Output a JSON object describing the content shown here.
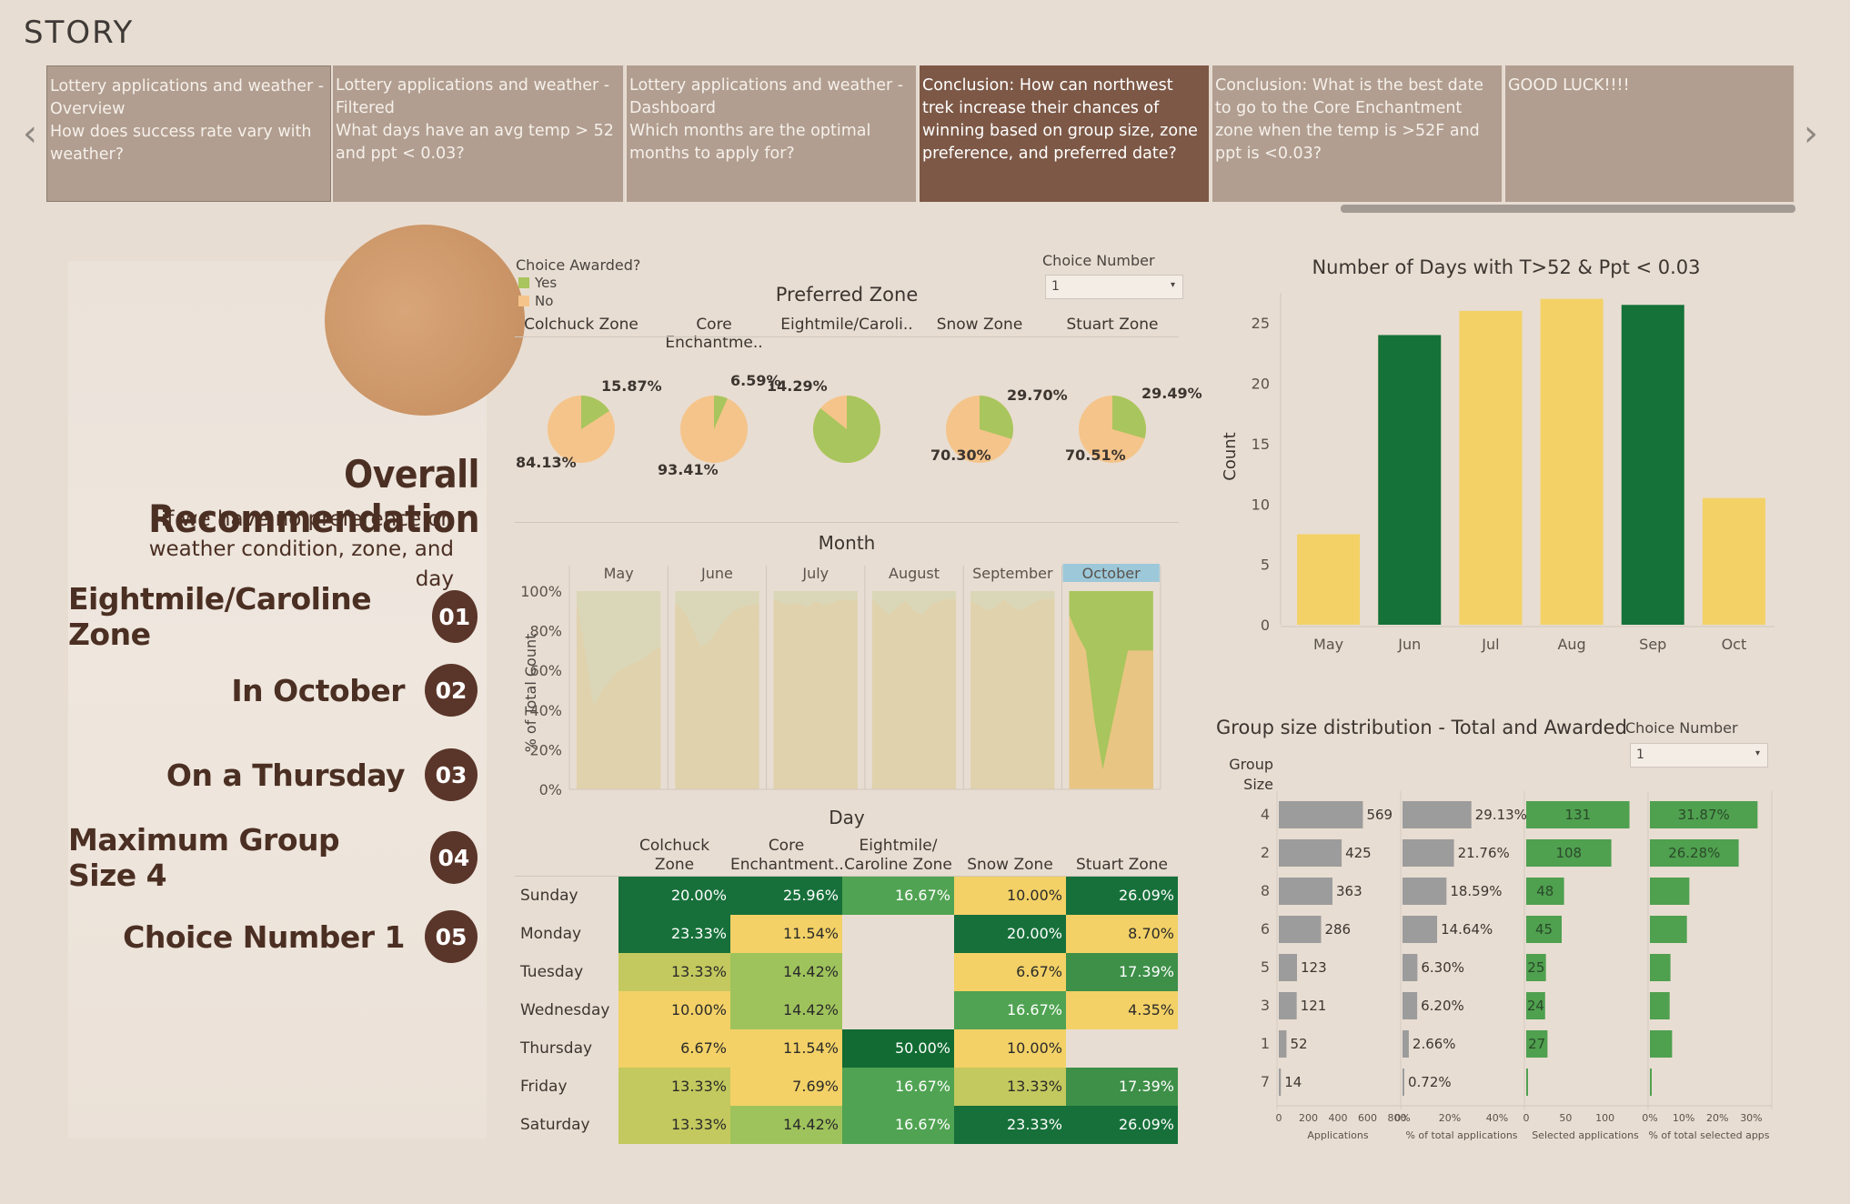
{
  "story": {
    "title": "STORY",
    "points": [
      {
        "title": "Lottery applications and weather - Overview",
        "question": "How does success rate vary with weather?"
      },
      {
        "title": "Lottery applications and weather - Filtered",
        "question": "What days have an avg temp > 52 and ppt < 0.03?"
      },
      {
        "title": "Lottery applications and weather - Dashboard",
        "question": "Which months are the optimal months to apply for?"
      },
      {
        "title": "Conclusion: How can northwest trek increase their chances of winning based on group size, zone preference, and preferred date?",
        "question": ""
      },
      {
        "title": "Conclusion: What is the best date to go to the Core Enchantment zone when the temp is >52F and ppt is <0.03?",
        "question": ""
      },
      {
        "title": "GOOD LUCK!!!!",
        "question": ""
      }
    ],
    "active_index": 3,
    "prev_icon": "chevron-left-icon",
    "next_icon": "chevron-right-icon"
  },
  "recommendation": {
    "title": "Overall Recommendation",
    "subtitle": "if we have no preference on weather condition, zone, and day",
    "items": [
      {
        "label": "Eightmile/Caroline Zone",
        "num": "01"
      },
      {
        "label": "In October",
        "num": "02"
      },
      {
        "label": "On a Thursday",
        "num": "03"
      },
      {
        "label": "Maximum Group Size 4",
        "num": "04"
      },
      {
        "label": "Choice Number 1",
        "num": "05"
      }
    ]
  },
  "legend": {
    "title": "Choice Awarded?",
    "items": [
      {
        "label": "Yes",
        "color": "#a9c55d"
      },
      {
        "label": "No",
        "color": "#f5c48a"
      }
    ]
  },
  "filters": {
    "choice_label": "Choice Number",
    "choice_value": "1",
    "choice_label2": "Choice Number",
    "choice_value2": "1"
  },
  "chart_data": [
    {
      "type": "pie",
      "title": "Preferred Zone",
      "categories": [
        "Colchuck Zone",
        "Core Enchantme..",
        "Eightmile/Caroli..",
        "Snow Zone",
        "Stuart Zone"
      ],
      "yes": [
        15.87,
        6.59,
        null,
        29.7,
        29.49
      ],
      "no": [
        84.13,
        93.41,
        null,
        70.3,
        70.51
      ],
      "yes_labels": [
        "15.87%",
        "6.59%",
        "",
        "29.70%",
        "29.49%"
      ],
      "no_labels": [
        "84.13%",
        "93.41%",
        "14.29%",
        "70.30%",
        "70.51%"
      ],
      "pie_yes_fraction": [
        0.1587,
        0.0659,
        0.8571,
        0.297,
        0.2949
      ],
      "colors": {
        "yes": "#a9c55d",
        "no": "#f5c48a"
      }
    },
    {
      "type": "area",
      "title": "Month",
      "categories": [
        "May",
        "June",
        "July",
        "August",
        "September",
        "October"
      ],
      "highlighted": "October",
      "ylabel": "% of Total Count",
      "yticks": [
        "100%",
        "80%",
        "60%",
        "40%",
        "20%",
        "0%"
      ],
      "no_share_profiles": [
        [
          0.95,
          0.7,
          0.42,
          0.5,
          0.55,
          0.6,
          0.62,
          0.64,
          0.66,
          0.7,
          0.72
        ],
        [
          0.94,
          0.9,
          0.82,
          0.72,
          0.74,
          0.8,
          0.86,
          0.9,
          0.92,
          0.93,
          0.94
        ],
        [
          0.96,
          0.94,
          0.93,
          0.94,
          0.92,
          0.95,
          0.93,
          0.94,
          0.96,
          0.95,
          0.96
        ],
        [
          0.96,
          0.92,
          0.88,
          0.92,
          0.95,
          0.9,
          0.88,
          0.93,
          0.95,
          0.96,
          0.96
        ],
        [
          0.95,
          0.93,
          0.9,
          0.92,
          0.96,
          0.92,
          0.9,
          0.93,
          0.95,
          0.96,
          0.96
        ],
        [
          0.88,
          0.78,
          0.7,
          0.35,
          0.1,
          0.3,
          0.5,
          0.7,
          0.7,
          0.7,
          0.7
        ]
      ],
      "colors": {
        "yes": "#a9c55d",
        "no": "#f5c48a"
      }
    },
    {
      "type": "bar",
      "title": "Number of Days with T>52 & Ppt < 0.03",
      "categories": [
        "May",
        "Jun",
        "Jul",
        "Aug",
        "Sep",
        "Oct"
      ],
      "values": [
        7.5,
        24,
        26,
        27,
        26.5,
        10.5
      ],
      "highlight": [
        false,
        true,
        false,
        false,
        true,
        false
      ],
      "ylabel": "Count",
      "ylim": [
        0,
        27.5
      ],
      "yticks": [
        0,
        5,
        10,
        15,
        20,
        25
      ],
      "colors": {
        "normal": "#f3d166",
        "highlight": "#157238"
      }
    },
    {
      "type": "heatmap",
      "title": "Day",
      "columns": [
        "Colchuck Zone",
        "Core Enchantment..",
        "Eightmile/ Caroline Zone",
        "Snow Zone",
        "Stuart Zone"
      ],
      "rows": [
        "Sunday",
        "Monday",
        "Tuesday",
        "Wednesday",
        "Thursday",
        "Friday",
        "Saturday"
      ],
      "values": [
        [
          "20.00%",
          "25.96%",
          "16.67%",
          "10.00%",
          "26.09%"
        ],
        [
          "23.33%",
          "11.54%",
          "",
          "20.00%",
          "8.70%"
        ],
        [
          "13.33%",
          "14.42%",
          "",
          "6.67%",
          "17.39%"
        ],
        [
          "10.00%",
          "14.42%",
          "",
          "16.67%",
          "4.35%"
        ],
        [
          "6.67%",
          "11.54%",
          "50.00%",
          "10.00%",
          ""
        ],
        [
          "13.33%",
          "7.69%",
          "16.67%",
          "13.33%",
          "17.39%"
        ],
        [
          "13.33%",
          "14.42%",
          "16.67%",
          "23.33%",
          "26.09%"
        ]
      ]
    },
    {
      "type": "bar",
      "title": "Group size distribution - Total and Awarded",
      "row_header": "Group Size",
      "groups": [
        "4",
        "2",
        "8",
        "6",
        "5",
        "3",
        "1",
        "7"
      ],
      "applications": [
        569,
        425,
        363,
        286,
        123,
        121,
        52,
        14
      ],
      "pct_total_applications": [
        29.13,
        21.76,
        18.59,
        14.64,
        6.3,
        6.2,
        2.66,
        0.72
      ],
      "selected_applications": [
        131,
        108,
        48,
        45,
        25,
        24,
        27,
        2
      ],
      "pct_total_selected_labels": [
        "31.87%",
        "26.28%",
        "",
        "",
        "",
        "",
        "",
        ""
      ],
      "pct_total_selected": [
        31.87,
        26.28,
        11.68,
        10.95,
        6.08,
        5.84,
        6.57,
        0.49
      ],
      "selected_shown": [
        "131",
        "108",
        "48",
        "45",
        "25",
        "24",
        "27",
        ""
      ],
      "axes": [
        {
          "label": "Applications",
          "ticks": [
            "0",
            "200",
            "400",
            "600",
            "800"
          ],
          "max": 800
        },
        {
          "label": "% of total applications",
          "ticks": [
            "0%",
            "20%",
            "40%"
          ],
          "max": 50
        },
        {
          "label": "Selected applications",
          "ticks": [
            "0",
            "50",
            "100"
          ],
          "max": 150
        },
        {
          "label": "% of total selected apps",
          "ticks": [
            "0%",
            "10%",
            "20%",
            "30%"
          ],
          "max": 35
        }
      ],
      "colors": {
        "grey": "#9c9c9c",
        "green": "#4fa04f"
      }
    }
  ]
}
